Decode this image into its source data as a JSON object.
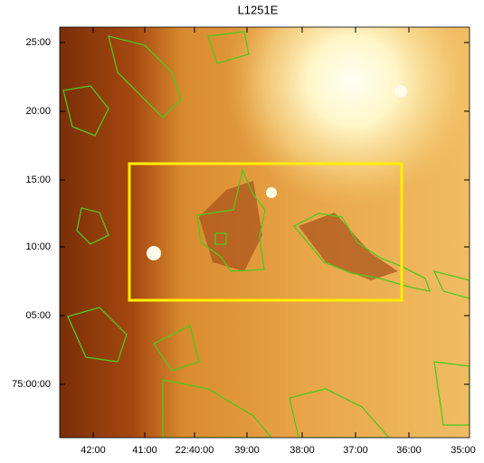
{
  "figure": {
    "title": "L1251E",
    "yticks": [
      "25:00",
      "20:00",
      "15:00",
      "10:00",
      "05:00",
      "75:00:00"
    ],
    "xticks": [
      "42:00",
      "41:00",
      "22:40:00",
      "39:00",
      "38:00",
      "37:00",
      "36:00",
      "35:00"
    ]
  }
}
